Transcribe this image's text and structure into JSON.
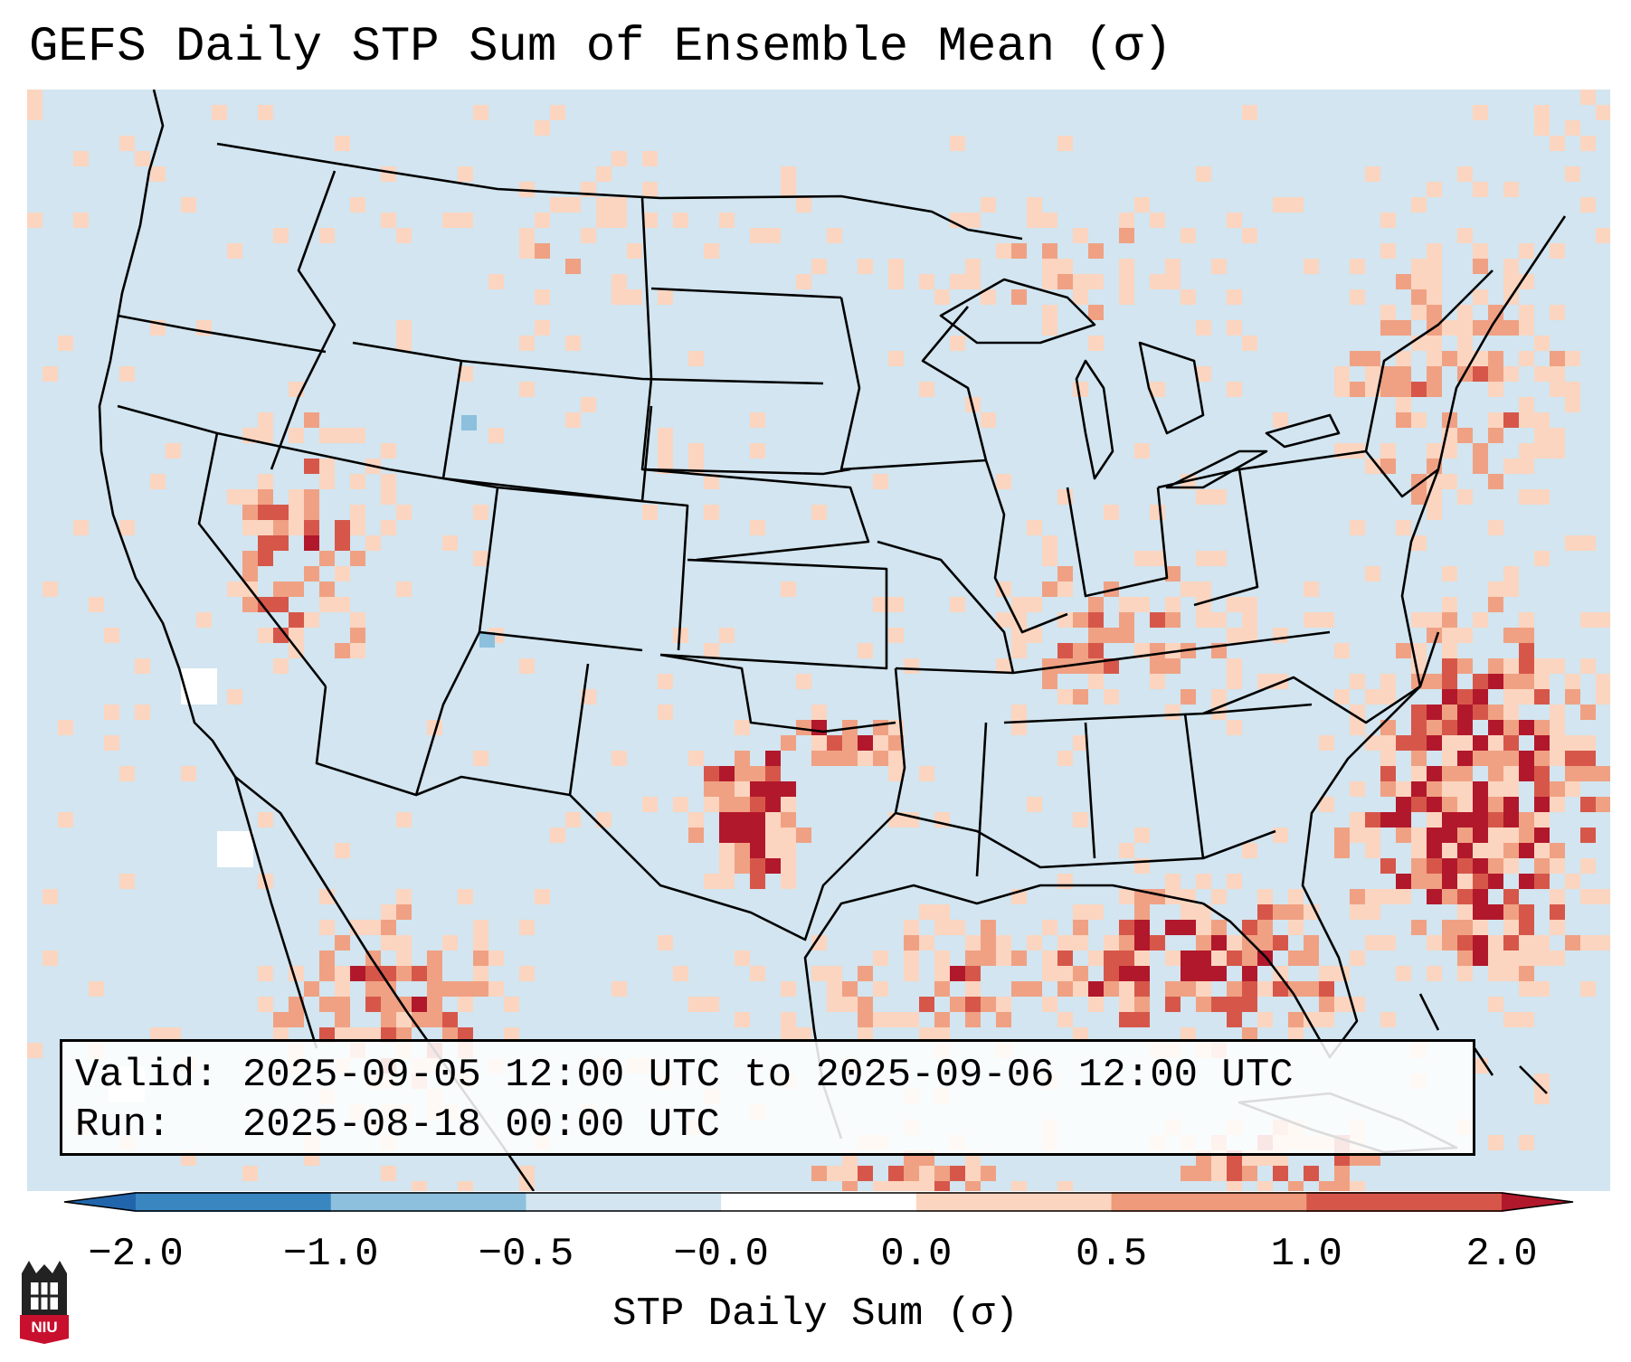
{
  "title": "GEFS Daily STP Sum of Ensemble Mean (σ)",
  "info": {
    "valid_label": "Valid:",
    "valid_text": "2025-09-05 12:00 UTC to 2025-09-06 12:00 UTC",
    "run_label": "Run:",
    "run_text": "2025-08-18 00:00 UTC"
  },
  "colorbar": {
    "label": "STP Daily Sum (σ)",
    "ticks": [
      "−2.0",
      "−1.0",
      "−0.5",
      "−0.0",
      "0.0",
      "0.5",
      "1.0",
      "2.0"
    ],
    "colors": [
      "#3a86c0",
      "#8cc0dd",
      "#d2e5f0",
      "#ffffff",
      "#fbd5c0",
      "#ef9a7b",
      "#d6574a"
    ],
    "extend_low_color": "#2166ac",
    "extend_high_color": "#b2182b"
  },
  "map": {
    "background_color": "#d2e5f0",
    "anomaly_colors": {
      "light": "#fbd5c0",
      "medium": "#f0a183",
      "strong": "#d6574a",
      "extreme": "#b2182b"
    },
    "patches": [
      {
        "region": "Southern Plains (TX/OK)",
        "level": "extreme"
      },
      {
        "region": "Red River Valley (OK/TX)",
        "level": "extreme"
      },
      {
        "region": "Western Atlantic offshore",
        "level": "extreme"
      },
      {
        "region": "Gulf of Mexico",
        "level": "strong"
      },
      {
        "region": "Southeast US",
        "level": "medium"
      },
      {
        "region": "Great Basin",
        "level": "medium"
      },
      {
        "region": "Northeast / Quebec",
        "level": "light"
      }
    ]
  },
  "logo": {
    "text": "NIU"
  }
}
